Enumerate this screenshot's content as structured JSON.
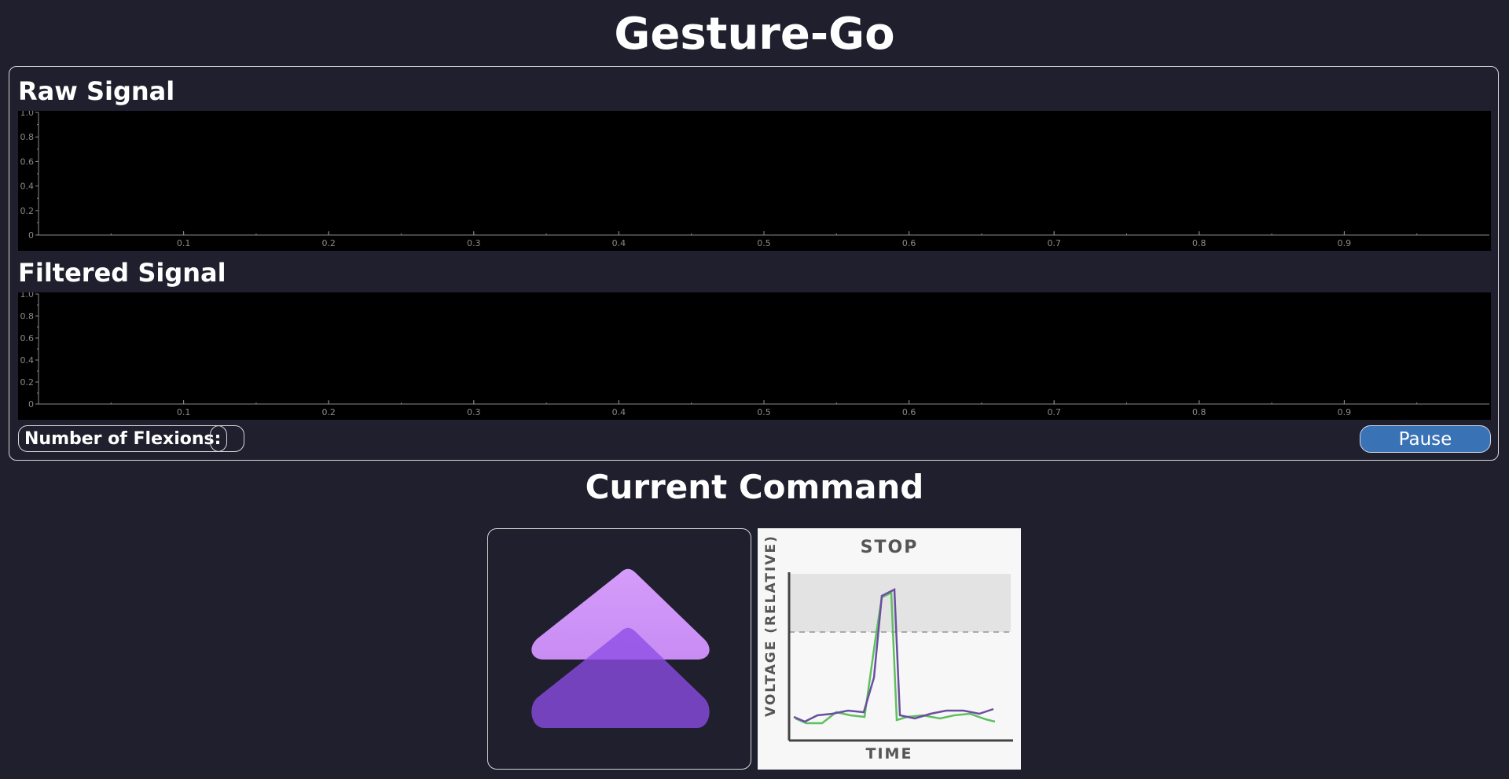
{
  "app": {
    "title": "Gesture-Go"
  },
  "signals": {
    "raw": {
      "title": "Raw Signal",
      "y_ticks": [
        "0",
        "0.2",
        "0.4",
        "0.6",
        "0.8",
        "1.0"
      ],
      "x_ticks": [
        "0.1",
        "0.2",
        "0.3",
        "0.4",
        "0.5",
        "0.6",
        "0.7",
        "0.8",
        "0.9"
      ]
    },
    "filtered": {
      "title": "Filtered Signal",
      "y_ticks": [
        "0",
        "0.2",
        "0.4",
        "0.6",
        "0.8",
        "1.0"
      ],
      "x_ticks": [
        "0.1",
        "0.2",
        "0.3",
        "0.4",
        "0.5",
        "0.6",
        "0.7",
        "0.8",
        "0.9"
      ]
    }
  },
  "controls": {
    "flexions_label": "Number of Flexions:",
    "flexions_value": "",
    "pause_label": "Pause"
  },
  "command": {
    "title": "Current Command",
    "gesture_icon": "double-chevron-up-icon",
    "reference": {
      "title": "STOP",
      "xlabel": "TIME",
      "ylabel": "VOLTAGE (RELATIVE)"
    }
  },
  "colors": {
    "background": "#1f1f2e",
    "plot_background": "#000000",
    "accent_button": "#3a73b5",
    "chevron_light": "#cf94f7",
    "chevron_dark": "#8e4de6",
    "trace_purple": "#6a4fa0",
    "trace_green": "#5fbf5f"
  }
}
